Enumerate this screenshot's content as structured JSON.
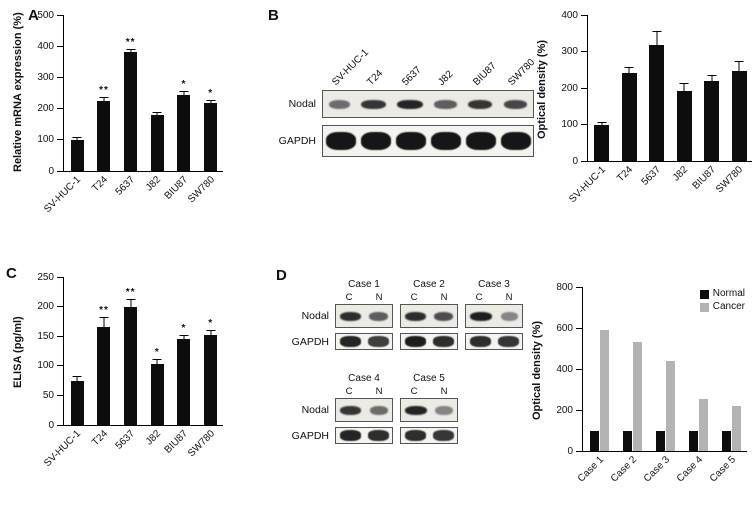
{
  "panels": {
    "A": "A",
    "B": "B",
    "C": "C",
    "D": "D"
  },
  "blot_b": {
    "lanes": [
      "SV-HUC-1",
      "T24",
      "5637",
      "J82",
      "BIU87",
      "SW780"
    ],
    "row_labels": [
      "Nodal",
      "GAPDH"
    ],
    "nodal_intensity": [
      0.45,
      0.8,
      0.9,
      0.55,
      0.8,
      0.7
    ],
    "gapdh_intensity": [
      1,
      1,
      1,
      1,
      1,
      1
    ]
  },
  "blot_d": {
    "row_labels": [
      "Nodal",
      "GAPDH"
    ],
    "lane_labels": [
      "C",
      "N"
    ],
    "groups": [
      {
        "title": "Case 1",
        "nodal": [
          0.85,
          0.55
        ],
        "gapdh": [
          0.9,
          0.75
        ]
      },
      {
        "title": "Case 2",
        "nodal": [
          0.85,
          0.65
        ],
        "gapdh": [
          0.95,
          0.85
        ]
      },
      {
        "title": "Case 3",
        "nodal": [
          0.95,
          0.3
        ],
        "gapdh": [
          0.85,
          0.8
        ]
      },
      {
        "title": "Case 4",
        "nodal": [
          0.8,
          0.45
        ],
        "gapdh": [
          0.9,
          0.85
        ]
      },
      {
        "title": "Case 5",
        "nodal": [
          0.9,
          0.3
        ],
        "gapdh": [
          0.85,
          0.8
        ]
      }
    ],
    "top_group_indexes": [
      0,
      1,
      2
    ],
    "bottom_group_indexes": [
      3,
      4
    ]
  },
  "chart_data": [
    {
      "id": "chart-a",
      "type": "bar",
      "ylabel": "Relative mRNA expression (%)",
      "ylim": [
        0,
        500
      ],
      "yticks": [
        0,
        100,
        200,
        300,
        400,
        500
      ],
      "categories": [
        "SV-HUC-1",
        "T24",
        "5637",
        "J82",
        "BIU87",
        "SW780"
      ],
      "values": [
        100,
        225,
        380,
        180,
        245,
        218
      ],
      "errors": [
        10,
        12,
        12,
        10,
        12,
        10
      ],
      "significance": [
        "",
        "**",
        "**",
        "",
        "*",
        "*"
      ],
      "bar_color": "#0d0d0d",
      "grid": false
    },
    {
      "id": "chart-b",
      "type": "bar",
      "ylabel": "Optical density (%)",
      "ylim": [
        0,
        400
      ],
      "yticks": [
        0,
        100,
        200,
        300,
        400
      ],
      "categories": [
        "SV-HUC-1",
        "T24",
        "5637",
        "J82",
        "BIU87",
        "SW780"
      ],
      "values": [
        100,
        240,
        318,
        193,
        220,
        248
      ],
      "errors": [
        6,
        18,
        38,
        22,
        15,
        25
      ],
      "significance": [
        "",
        "",
        "",
        "",
        "",
        ""
      ],
      "bar_color": "#0d0d0d",
      "grid": false
    },
    {
      "id": "chart-c",
      "type": "bar",
      "ylabel": "ELISA (pg/ml)",
      "ylim": [
        0,
        250
      ],
      "yticks": [
        0,
        50,
        100,
        150,
        200,
        250
      ],
      "categories": [
        "SV-HUC-1",
        "T24",
        "5637",
        "J82",
        "BIU87",
        "SW780"
      ],
      "values": [
        75,
        165,
        200,
        103,
        145,
        152
      ],
      "errors": [
        8,
        18,
        13,
        8,
        7,
        8
      ],
      "significance": [
        "",
        "**",
        "**",
        "*",
        "*",
        "*"
      ],
      "bar_color": "#0d0d0d",
      "grid": false
    },
    {
      "id": "chart-d",
      "type": "grouped-bar",
      "ylabel": "Optical density (%)",
      "ylim": [
        0,
        800
      ],
      "yticks": [
        0,
        200,
        400,
        600,
        800
      ],
      "categories": [
        "Case 1",
        "Case 2",
        "Case 3",
        "Case 4",
        "Case 5"
      ],
      "series": [
        {
          "name": "Normal",
          "color": "#0d0d0d",
          "values": [
            100,
            100,
            100,
            100,
            100
          ]
        },
        {
          "name": "Cancer",
          "color": "#b3b3b3",
          "values": [
            590,
            530,
            440,
            255,
            220
          ]
        }
      ],
      "legend": [
        "Normal",
        "Cancer"
      ],
      "legend_position": "top-right",
      "grid": false
    }
  ]
}
